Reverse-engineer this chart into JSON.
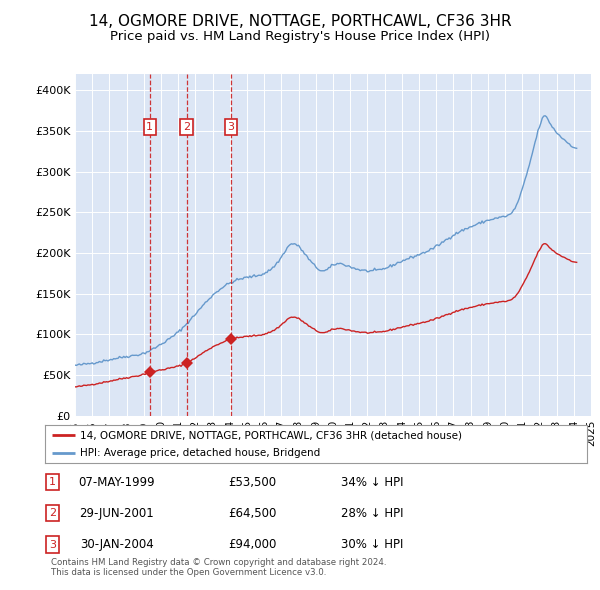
{
  "title": "14, OGMORE DRIVE, NOTTAGE, PORTHCAWL, CF36 3HR",
  "subtitle": "Price paid vs. HM Land Registry's House Price Index (HPI)",
  "title_fontsize": 11,
  "subtitle_fontsize": 9.5,
  "background_color": "#ffffff",
  "plot_bg_color": "#dce6f5",
  "ylim": [
    0,
    420000
  ],
  "yticks": [
    0,
    50000,
    100000,
    150000,
    200000,
    250000,
    300000,
    350000,
    400000
  ],
  "ytick_labels": [
    "£0",
    "£50K",
    "£100K",
    "£150K",
    "£200K",
    "£250K",
    "£300K",
    "£350K",
    "£400K"
  ],
  "legend_house_label": "14, OGMORE DRIVE, NOTTAGE, PORTHCAWL, CF36 3HR (detached house)",
  "legend_hpi_label": "HPI: Average price, detached house, Bridgend",
  "house_color": "#cc2222",
  "hpi_color": "#6699cc",
  "sale_marker_color": "#cc2222",
  "sale_dashed_color": "#cc2222",
  "sale_box_color": "#cc2222",
  "footer_text": "Contains HM Land Registry data © Crown copyright and database right 2024.\nThis data is licensed under the Open Government Licence v3.0.",
  "sales": [
    {
      "num": 1,
      "date": "07-MAY-1999",
      "price": 53500,
      "pct": "34% ↓ HPI",
      "x_year": 1999.35
    },
    {
      "num": 2,
      "date": "29-JUN-2001",
      "price": 64500,
      "pct": "28% ↓ HPI",
      "x_year": 2001.5
    },
    {
      "num": 3,
      "date": "30-JAN-2004",
      "price": 94000,
      "pct": "30% ↓ HPI",
      "x_year": 2004.08
    }
  ],
  "xlim_start": 1995.0,
  "xlim_end": 2025.0
}
